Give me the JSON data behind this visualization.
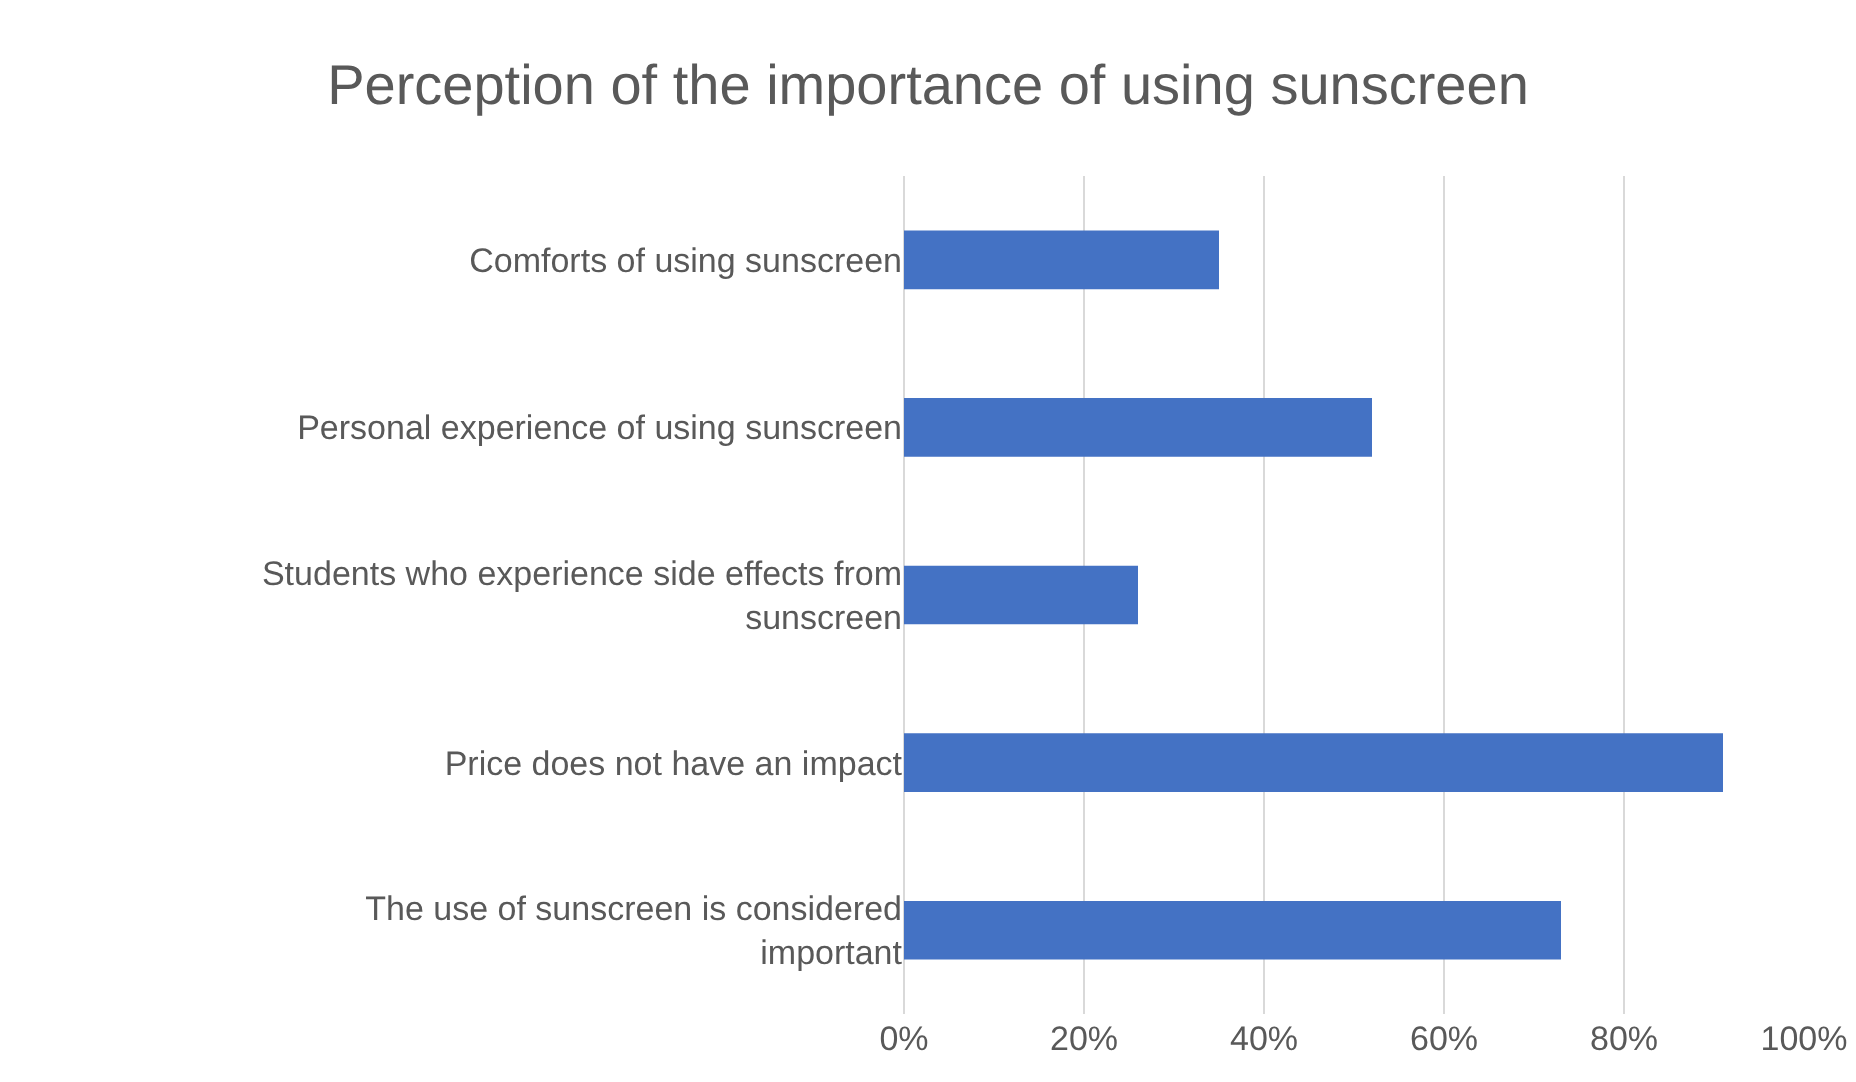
{
  "chart_data": {
    "type": "bar",
    "orientation": "horizontal",
    "title": "Perception of the importance of using sunscreen",
    "categories": [
      "Comforts of using sunscreen",
      "Personal experience of using sunscreen",
      "Students who experience side effects from sunscreen",
      "Price does not have an impact",
      "The use of sunscreen is considered important"
    ],
    "values": [
      35,
      52,
      26,
      91,
      73
    ],
    "color": "#4472c4",
    "xlim": [
      0,
      100
    ],
    "xticks": [
      {
        "value": 0,
        "label": "0%"
      },
      {
        "value": 20,
        "label": "20%"
      },
      {
        "value": 40,
        "label": "40%"
      },
      {
        "value": 60,
        "label": "60%"
      },
      {
        "value": 80,
        "label": "80%"
      },
      {
        "value": 100,
        "label": "100%"
      }
    ],
    "grid": "x"
  }
}
